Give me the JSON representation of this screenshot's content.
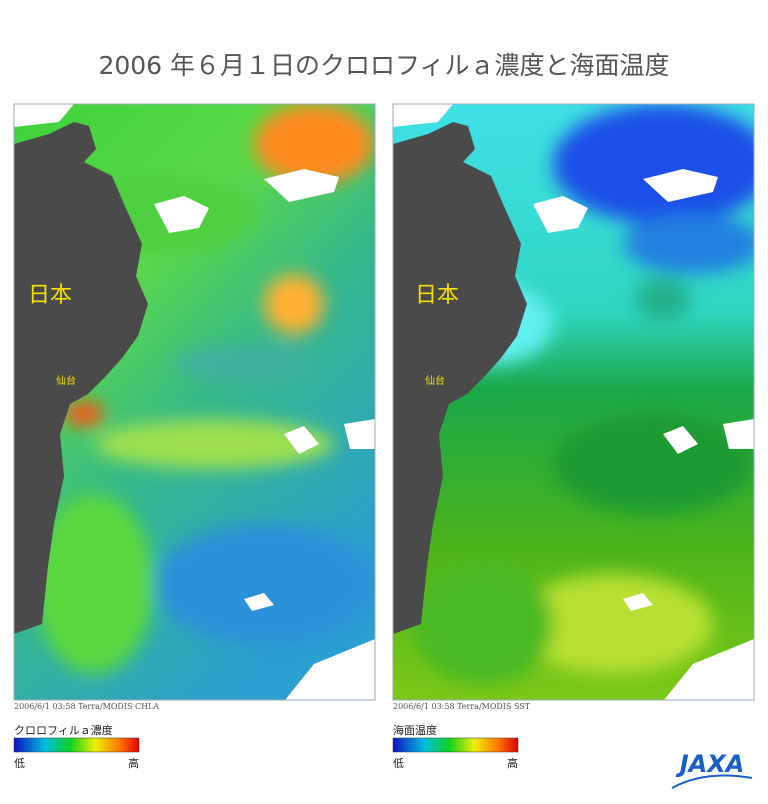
{
  "header": {
    "title": "2006 年６月１日のクロロフィルａ濃度と海面温度"
  },
  "panels": [
    {
      "place_large": "日本",
      "place_small": "仙台",
      "caption": "2006/6/1 03:58 Terra/MODIS CHLA",
      "legend": {
        "title": "クロロフィルａ濃度",
        "low": "低",
        "high": "高"
      }
    },
    {
      "place_large": "日本",
      "place_small": "仙台",
      "caption": "2006/6/1 03:58 Terra/MODIS SST",
      "legend": {
        "title": "海面温度",
        "low": "低",
        "high": "高"
      }
    }
  ],
  "logo": "JAXA"
}
